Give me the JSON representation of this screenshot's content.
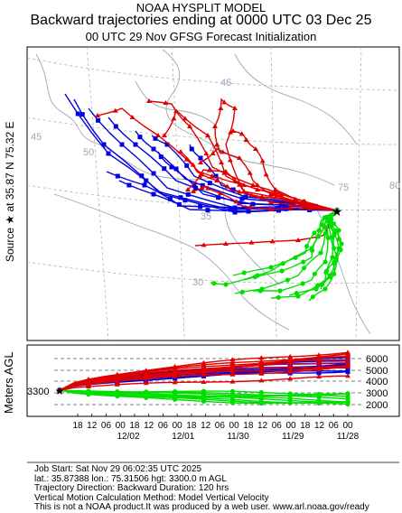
{
  "header": {
    "line1": "NOAA HYSPLIT MODEL",
    "line2": "Backward trajectories ending at 0000 UTC 03 Dec 25",
    "line3": "00 UTC 29 Nov    GFSG  Forecast Initialization"
  },
  "source_label": {
    "prefix": "Source ★ at",
    "lat": "35.87 N",
    "lon": "75.32 E"
  },
  "map": {
    "lat_labels": [
      "45",
      "40",
      "35",
      "30"
    ],
    "lon_labels": [
      "50",
      "75",
      "80"
    ],
    "colors": {
      "red": "#e00000",
      "blue": "#0000e0",
      "green": "#00e000",
      "grid": "#b0b0b0",
      "border": "#9aa8b8"
    }
  },
  "profile": {
    "axis_label": "Meters AGL",
    "start_height": "3300",
    "height_ticks": [
      "6000",
      "5000",
      "4000",
      "3000",
      "2000"
    ],
    "time_ticks": [
      "18",
      "12",
      "06",
      "00",
      "18",
      "12",
      "06",
      "00",
      "18",
      "12",
      "06",
      "00",
      "18",
      "12",
      "06",
      "00",
      "18",
      "12",
      "06",
      "00"
    ],
    "date_labels": [
      "12/02",
      "12/01",
      "11/30",
      "11/29",
      "11/28"
    ]
  },
  "footer": {
    "line1": "Job Start: Sat Nov 29 06:02:35 UTC 2025",
    "line2": "lat.: 35.87388   lon.: 75.31506   hgt: 3300.0 m AGL",
    "line3": "Trajectory Direction: Backward      Duration: 120 hrs",
    "line4": "Vertical Motion Calculation Method: Model Vertical Velocity",
    "line5": "This is not a NOAA product.It was produced by a web user. www.arl.noaa.gov/ready"
  }
}
